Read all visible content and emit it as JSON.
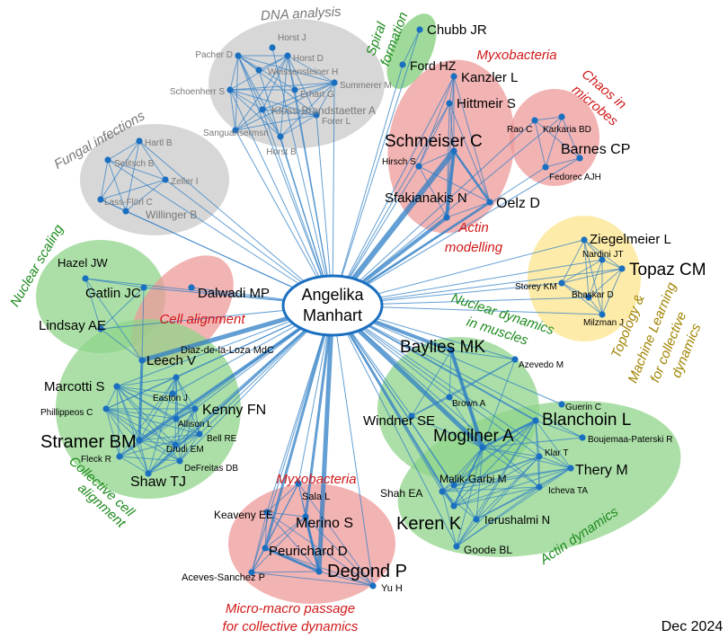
{
  "center": {
    "line1": "Angelika",
    "line2": "Manhart"
  },
  "date": "Dec 2024",
  "colors": {
    "edge": "#2f7fc6",
    "node": "#1a6fc0",
    "gray_fill": "#cfcfcf",
    "pink_fill": "#ec8f8f",
    "green_fill": "#8fd48a",
    "yellow_fill": "#fde9a0",
    "gray_text": "#777777",
    "red_text": "#d01818",
    "green_text": "#1d8a1d",
    "olive_text": "#a08300"
  },
  "cluster_labels": {
    "dna": "DNA analysis",
    "fungal": "Fungal infections",
    "spiral_1": "Spiral",
    "spiral_2": "formation",
    "myxo_top": "Myxobacteria",
    "chaos_1": "Chaos in",
    "chaos_2": "microbes",
    "actin_mod_1": "Actin",
    "actin_mod_2": "modelling",
    "nuclear_scaling": "Nuclear scaling",
    "cell_alignment": "Cell alignment",
    "topology_1": "Topology &",
    "topology_2": "Machine Learning",
    "topology_3": "for collective",
    "topology_4": "dynamics",
    "nuc_dyn_1": "Nuclear dynamics",
    "nuc_dyn_2": "in muscles",
    "collective_1": "Collective cell",
    "collective_2": "alignment",
    "myxo_bottom": "Myxobacteria",
    "micro_1": "Micro-macro passage",
    "micro_2": "for collective dynamics",
    "actin_dyn": "Actin dynamics"
  },
  "nodes": {
    "horst_j": "Horst J",
    "pacher_d": "Pacher D",
    "horst_d": "Horst D",
    "weissensteiner_h": "Weissensteiner H",
    "summerer_m": "Summerer M",
    "schoenherr_s": "Schoenherr S",
    "erhart_g": "Erhart G",
    "kloss_brandstaetter_a": "Kloss-Brandstaetter A",
    "forer_l": "Forer L",
    "sanguansermsri": "Sanguansermsri",
    "horst_b": "Horst B",
    "hartl_b": "Hartl B",
    "selitsch_b": "Selitsch B",
    "zeller_i": "Zeller I",
    "lass_floerl_c": "Lass-Flörl C",
    "willinger_b": "Willinger B",
    "chubb_jr": "Chubb JR",
    "ford_hz": "Ford HZ",
    "kanzler_l": "Kanzler L",
    "hittmeir_s": "Hittmeir S",
    "schmeiser_c": "Schmeiser C",
    "hirsch_s": "Hirsch S",
    "sfakianakis_n": "Sfakianakis N",
    "oelz_d": "Oelz D",
    "rao_c": "Rao C",
    "karkaria_bd": "Karkaria BD",
    "barnes_cp": "Barnes CP",
    "fedorec_ajh": "Fedorec AJH",
    "ziegelmeier_l": "Ziegelmeier L",
    "nardini_jt": "Nardini JT",
    "topaz_cm": "Topaz CM",
    "storey_km": "Storey KM",
    "bhaskar_d": "Bhaskar D",
    "milzman_j": "Milzman J",
    "hazel_jw": "Hazel JW",
    "gatlin_jc": "Gatlin JC",
    "dalwadi_mp": "Dalwadi MP",
    "lindsay_ae": "Lindsay AE",
    "leech_v": "Leech V",
    "diaz_de_la_loza": "Diaz-de-la-Loza MdC",
    "marcotti_s": "Marcotti S",
    "easton_j": "Easton J",
    "phillippeos_c": "Phillippeos C",
    "kenny_fn": "Kenny FN",
    "allison_l": "Allison L",
    "stramer_bm": "Stramer BM",
    "bell_re": "Bell RE",
    "drudi_em": "Drudi EM",
    "fleck_r": "Fleck R",
    "defreitas_db": "DeFreitas DB",
    "shaw_tj": "Shaw TJ",
    "baylies_mk": "Baylies MK",
    "azevedo_m": "Azevedo M",
    "brown_a": "Brown A",
    "windner_se": "Windner SE",
    "guerin_c": "Guerin C",
    "blanchoin_l": "Blanchoin L",
    "mogilner_a": "Mogilner A",
    "boujemaa_paterski_r": "Boujemaa-Paterski R",
    "klar_t": "Klar T",
    "thery_m": "Thery M",
    "malik_garbi_m": "Malik-Garbi M",
    "icheva_ta": "Icheva TA",
    "shah_ea": "Shah EA",
    "keren_k": "Keren K",
    "ierushalmi_n": "Ierushalmi N",
    "goode_bl": "Goode BL",
    "sala_l": "Sala L",
    "keaveny_ee": "Keaveny EE",
    "merino_s": "Merino S",
    "peurichard_d": "Peurichard D",
    "degond_p": "Degond P",
    "aceves_sanchez_p": "Aceves-Sanchez P",
    "yu_h": "Yu H"
  }
}
